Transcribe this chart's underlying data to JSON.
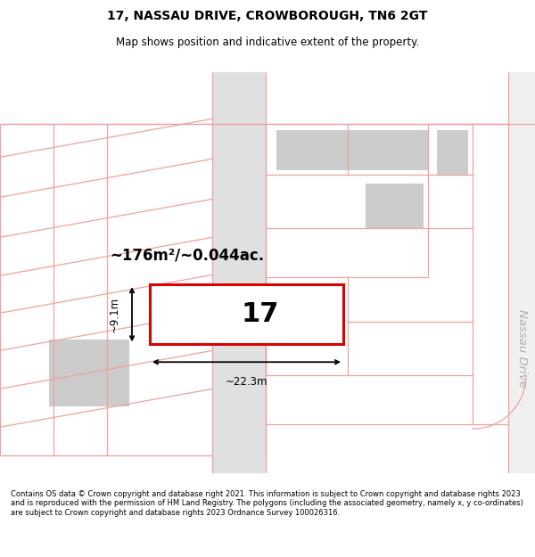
{
  "title": "17, NASSAU DRIVE, CROWBOROUGH, TN6 2GT",
  "subtitle": "Map shows position and indicative extent of the property.",
  "footer": "Contains OS data © Crown copyright and database right 2021. This information is subject to Crown copyright and database rights 2023 and is reproduced with the permission of HM Land Registry. The polygons (including the associated geometry, namely x, y co-ordinates) are subject to Crown copyright and database rights 2023 Ordnance Survey 100026316.",
  "area_label": "~176m²/~0.044ac.",
  "width_label": "~22.3m",
  "height_label": "~9.1m",
  "house_number": "17",
  "bg_color": "#ffffff",
  "road_color": "#f0a0a0",
  "building_fill": "#cccccc",
  "highlight_stroke": "#dd0000",
  "nassau_drive_label": "Nassau Drive",
  "title_fontsize": 10,
  "subtitle_fontsize": 8.5,
  "footer_fontsize": 6.0
}
